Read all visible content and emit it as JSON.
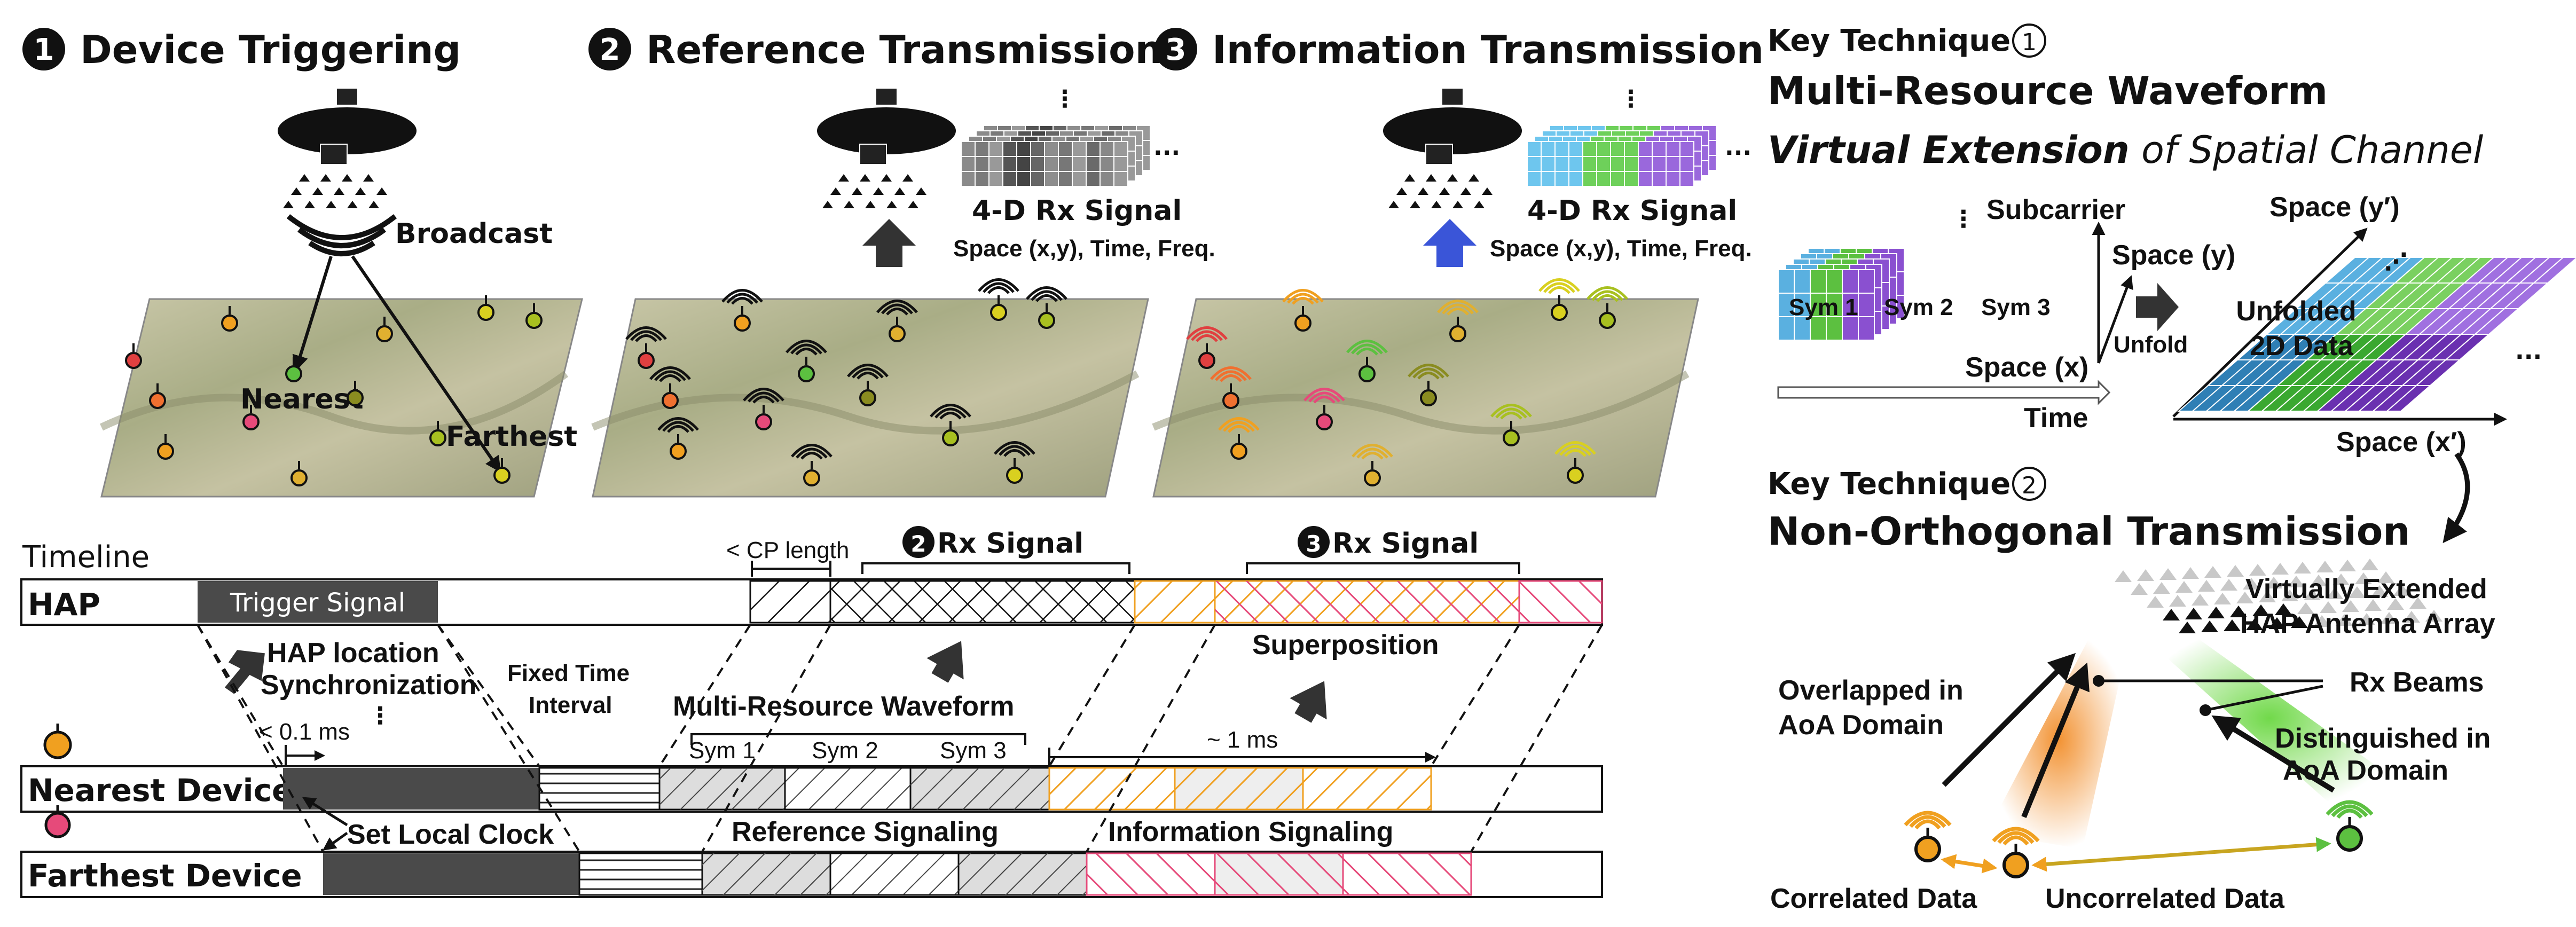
{
  "steps": {
    "s1": {
      "num": "1",
      "title": "Device Triggering"
    },
    "s2": {
      "num": "2",
      "title": "Reference Transmission"
    },
    "s3": {
      "num": "3",
      "title": "Information Transmission"
    }
  },
  "map1": {
    "broadcast": "Broadcast",
    "nearest": "Nearest",
    "farthest": "Farthest"
  },
  "rx": {
    "title": "4-D Rx Signal",
    "subtitle": "Space (x,y), Time, Freq.",
    "ellipsis": "...",
    "vdots": "⋮"
  },
  "key1": {
    "label": "Key Technique",
    "num": "1",
    "title": "Multi-Resource Waveform",
    "subtitle_italic": "Virtual Extension",
    "subtitle_rest": " of Spatial Channel",
    "sym1": "Sym 1",
    "sym2": "Sym 2",
    "sym3": "Sym 3",
    "subcarrier": "Subcarrier",
    "space_y": "Space (y)",
    "space_x": "Space (x)",
    "time": "Time",
    "unfold": "Unfold",
    "space_y2": "Space (y′)",
    "unfolded": "Unfolded",
    "data2d": "2D Data",
    "space_x2": "Space (x′)",
    "ellipsis": "...",
    "dots": "⋰"
  },
  "key2": {
    "label": "Key Technique",
    "num": "2",
    "title": "Non-Orthogonal Transmission",
    "array1": "Virtually Extended",
    "array2": "HAP Antenna Array",
    "rx_beams": "Rx Beams",
    "overlapped1": "Overlapped in",
    "overlapped2": "AoA Domain",
    "distinguished1": "Distinguished in",
    "distinguished2": "AoA Domain",
    "correlated": "Correlated Data",
    "uncorrelated": "Uncorrelated Data"
  },
  "timeline": {
    "title": "Timeline",
    "hap": "HAP",
    "nearest": "Nearest Device",
    "farthest": "Farthest Device",
    "trigger": "Trigger Signal",
    "hap_loc1": "HAP location",
    "hap_loc2": "Synchronization",
    "dots": "⋮",
    "lt01": "< 0.1 ms",
    "set_clock": "Set Local Clock",
    "fixed1": "Fixed Time",
    "fixed2": "Interval",
    "cp": "< CP length",
    "rx2_num": "2",
    "rx3_num": "3",
    "rx_signal": " Rx Signal",
    "superposition": "Superposition",
    "mrw": "Multi-Resource Waveform",
    "sym1": "Sym 1",
    "sym2": "Sym 2",
    "sym3": "Sym 3",
    "one_ms": "~ 1 ms",
    "ref_sig": "Reference Signaling",
    "info_sig": "Information Signaling"
  },
  "colors": {
    "orange": "#f0a020",
    "pink": "#e64a7a",
    "blue": "#4a6fdc",
    "green": "#5cc040",
    "purple": "#8a50d0",
    "cyan": "#5ab8e8",
    "dark": "#3a3a3a"
  }
}
